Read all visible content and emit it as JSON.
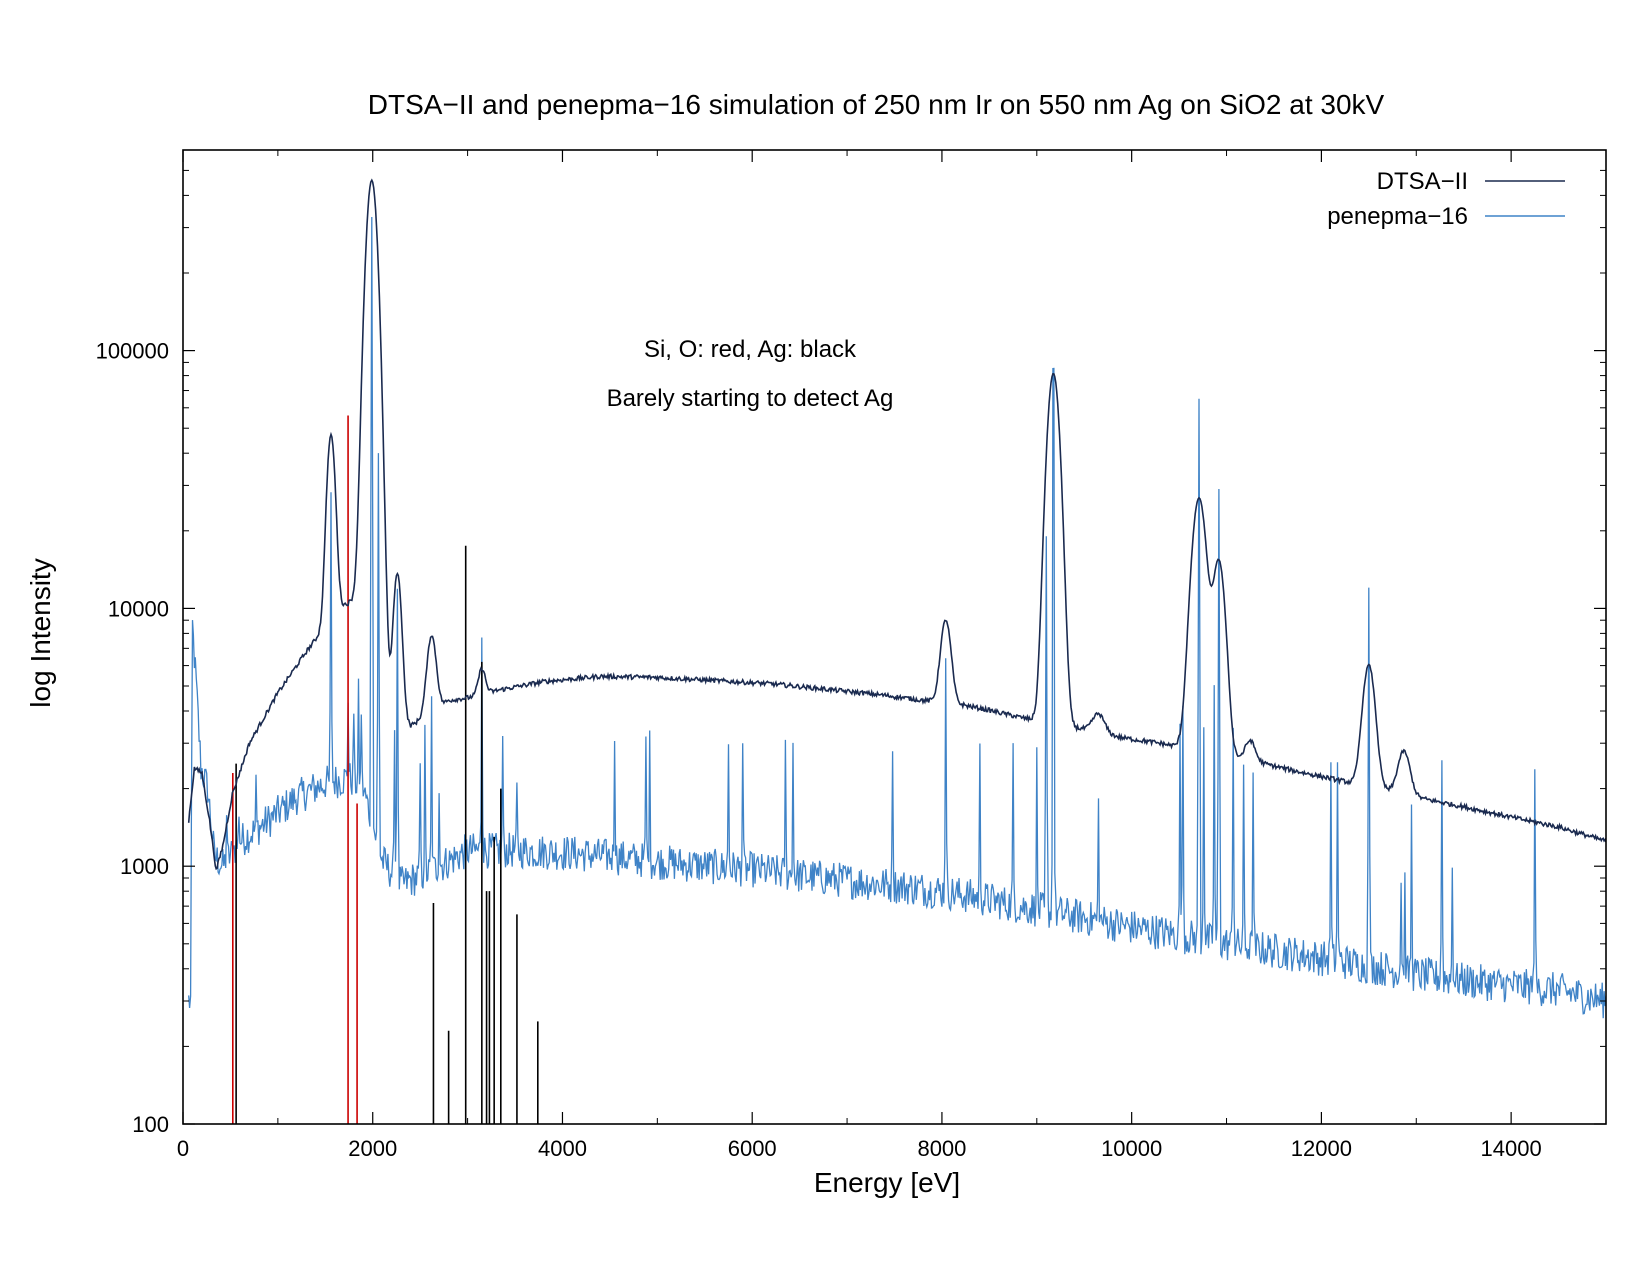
{
  "chart_data": {
    "type": "line",
    "title": "DTSA−II and penepma−16 simulation of 250 nm Ir on 550 nm Ag on SiO2 at 30kV",
    "xlabel": "Energy [eV]",
    "ylabel": "log Intensity",
    "xlim": [
      0,
      15000
    ],
    "ylim": [
      100,
      600000
    ],
    "yscale": "log",
    "grid": false,
    "legend_position": "top-right",
    "x_ticks": [
      0,
      2000,
      4000,
      6000,
      8000,
      10000,
      12000,
      14000
    ],
    "x_tick_labels": [
      "0",
      "2000",
      "4000",
      "6000",
      "8000",
      "10000",
      "12000",
      "14000"
    ],
    "y_ticks": [
      100,
      1000,
      10000,
      100000
    ],
    "y_tick_labels": [
      "100",
      "1000",
      "10000",
      "100000"
    ],
    "annotations": [
      "Si, O: red, Ag: black",
      "Barely starting to detect Ag"
    ],
    "series": [
      {
        "name": "DTSA−II",
        "color": "#1a2a4f",
        "background": [
          [
            60,
            1500
          ],
          [
            120,
            2400
          ],
          [
            200,
            2300
          ],
          [
            280,
            1500
          ],
          [
            350,
            960
          ],
          [
            420,
            1200
          ],
          [
            520,
            1900
          ],
          [
            700,
            3000
          ],
          [
            1000,
            4700
          ],
          [
            1300,
            6800
          ],
          [
            1500,
            8500
          ],
          [
            1600,
            9600
          ],
          [
            1700,
            10300
          ],
          [
            1900,
            11200
          ],
          [
            2050,
            6200
          ],
          [
            2200,
            3800
          ],
          [
            2400,
            3500
          ],
          [
            2550,
            3800
          ],
          [
            2800,
            4400
          ],
          [
            3000,
            4500
          ],
          [
            3300,
            4800
          ],
          [
            3800,
            5200
          ],
          [
            4400,
            5450
          ],
          [
            5000,
            5400
          ],
          [
            5600,
            5250
          ],
          [
            6200,
            5100
          ],
          [
            6800,
            4850
          ],
          [
            7400,
            4600
          ],
          [
            7800,
            4400
          ],
          [
            8100,
            4300
          ],
          [
            8400,
            4100
          ],
          [
            8800,
            3800
          ],
          [
            9100,
            3600
          ],
          [
            9500,
            3400
          ],
          [
            9900,
            3150
          ],
          [
            10300,
            3000
          ],
          [
            10700,
            2800
          ],
          [
            11200,
            2600
          ],
          [
            11700,
            2350
          ],
          [
            12200,
            2150
          ],
          [
            12600,
            2000
          ],
          [
            13000,
            1850
          ],
          [
            13500,
            1700
          ],
          [
            14000,
            1550
          ],
          [
            14500,
            1420
          ],
          [
            15000,
            1250
          ]
        ],
        "peaks": [
          [
            1560,
            38000,
            40
          ],
          [
            1990,
            450000,
            55
          ],
          [
            2260,
            10000,
            40
          ],
          [
            2620,
            3900,
            45
          ],
          [
            3150,
            1200,
            35
          ],
          [
            8040,
            4700,
            50
          ],
          [
            9175,
            78000,
            60
          ],
          [
            9650,
            600,
            60
          ],
          [
            10710,
            24000,
            70
          ],
          [
            10920,
            12500,
            60
          ],
          [
            11250,
            500,
            50
          ],
          [
            12500,
            4000,
            60
          ],
          [
            12870,
            900,
            60
          ]
        ]
      },
      {
        "name": "penepma−16",
        "color": "#3f83c7",
        "background": [
          [
            80,
            300
          ],
          [
            100,
            8500
          ],
          [
            140,
            5000
          ],
          [
            190,
            2400
          ],
          [
            260,
            2000
          ],
          [
            330,
            1100
          ],
          [
            420,
            1000
          ],
          [
            600,
            1250
          ],
          [
            900,
            1500
          ],
          [
            1200,
            1850
          ],
          [
            1500,
            2100
          ],
          [
            1750,
            2200
          ],
          [
            1900,
            2000
          ],
          [
            2100,
            1050
          ],
          [
            2300,
            850
          ],
          [
            2600,
            950
          ],
          [
            3000,
            1150
          ],
          [
            3500,
            1150
          ],
          [
            4000,
            1130
          ],
          [
            4500,
            1090
          ],
          [
            5000,
            1040
          ],
          [
            5500,
            1000
          ],
          [
            6000,
            970
          ],
          [
            6500,
            920
          ],
          [
            7000,
            880
          ],
          [
            7500,
            840
          ],
          [
            8000,
            800
          ],
          [
            8500,
            740
          ],
          [
            9000,
            680
          ],
          [
            9500,
            630
          ],
          [
            10000,
            580
          ],
          [
            10500,
            540
          ],
          [
            11000,
            500
          ],
          [
            11500,
            470
          ],
          [
            12000,
            440
          ],
          [
            12500,
            410
          ],
          [
            13000,
            380
          ],
          [
            13500,
            360
          ],
          [
            14000,
            345
          ],
          [
            14500,
            330
          ],
          [
            15000,
            300
          ]
        ],
        "noise": 0.07,
        "lines": [
          [
            190,
            2400
          ],
          [
            460,
            1600
          ],
          [
            530,
            1300
          ],
          [
            590,
            1650
          ],
          [
            770,
            2100
          ],
          [
            1560,
            28000
          ],
          [
            1740,
            4500
          ],
          [
            1800,
            4000
          ],
          [
            1850,
            5000
          ],
          [
            1880,
            4000
          ],
          [
            1990,
            330000
          ],
          [
            2060,
            40000
          ],
          [
            2230,
            3500
          ],
          [
            2260,
            12000
          ],
          [
            2500,
            2500
          ],
          [
            2550,
            3400
          ],
          [
            2620,
            4500
          ],
          [
            2700,
            2000
          ],
          [
            3150,
            7800
          ],
          [
            3370,
            3200
          ],
          [
            3520,
            2000
          ],
          [
            4550,
            3200
          ],
          [
            4880,
            3200
          ],
          [
            4920,
            3200
          ],
          [
            5750,
            3000
          ],
          [
            5900,
            3000
          ],
          [
            6350,
            3000
          ],
          [
            6430,
            3000
          ],
          [
            7480,
            2900
          ],
          [
            8040,
            6500
          ],
          [
            8400,
            2900
          ],
          [
            8750,
            2900
          ],
          [
            9000,
            2800
          ],
          [
            9100,
            19000
          ],
          [
            9175,
            170000
          ],
          [
            9650,
            1800
          ],
          [
            10510,
            3500
          ],
          [
            10540,
            4200
          ],
          [
            10710,
            65000
          ],
          [
            10760,
            3500
          ],
          [
            10870,
            5000
          ],
          [
            10920,
            29000
          ],
          [
            11070,
            3500
          ],
          [
            11180,
            2400
          ],
          [
            11280,
            2300
          ],
          [
            12100,
            2500
          ],
          [
            12170,
            2500
          ],
          [
            12500,
            12000
          ],
          [
            12840,
            900
          ],
          [
            12880,
            900
          ],
          [
            12950,
            1700
          ],
          [
            13270,
            2600
          ],
          [
            13380,
            1000
          ],
          [
            14250,
            2400
          ]
        ]
      }
    ],
    "element_markers": [
      {
        "name": "Si, O",
        "color": "#cc0000",
        "lines": [
          [
            525,
            2300
          ],
          [
            1740,
            56000
          ],
          [
            1835,
            1750
          ]
        ]
      },
      {
        "name": "Ag",
        "color": "#000000",
        "lines": [
          [
            560,
            2500
          ],
          [
            2640,
            720
          ],
          [
            2800,
            230
          ],
          [
            2980,
            17500
          ],
          [
            3150,
            6200
          ],
          [
            3200,
            800
          ],
          [
            3230,
            800
          ],
          [
            3280,
            1300
          ],
          [
            3350,
            2000
          ],
          [
            3520,
            650
          ],
          [
            3740,
            250
          ]
        ]
      }
    ]
  }
}
